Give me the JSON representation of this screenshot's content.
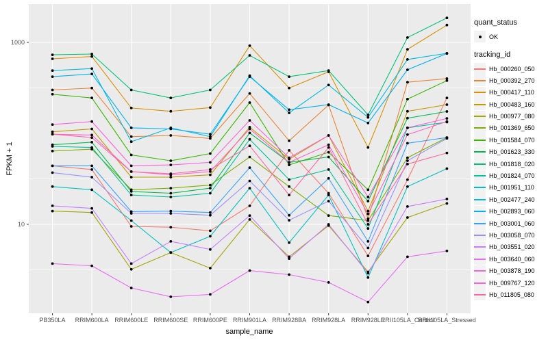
{
  "chart_data": {
    "type": "line",
    "title": "",
    "xlabel": "sample_name",
    "ylabel": "FPKM + 1",
    "y_scale": "log10",
    "y_axis_ticks": [
      10,
      1000
    ],
    "y_minor_gridlines": [
      3.16,
      31.6,
      316
    ],
    "ylim": [
      1.05,
      2600
    ],
    "grid": "on",
    "legend_position": "right",
    "panel_background": "#EBEBEB",
    "gridline_color": "#FFFFFF",
    "point_color": "#000000",
    "x_categories": [
      "PB350LA",
      "RRIM600LA",
      "RRIM600LE",
      "RRIM600SE",
      "RRIM600PE",
      "RRIM901LA",
      "RRIM928BA",
      "RRIM928LA",
      "RRIM928LE",
      "RRII105LA_Control",
      "RRII105LA_Stressed"
    ],
    "series": [
      {
        "tracking_id": "Hb_000260_050",
        "quant_status": "OK",
        "color": "#F8766D",
        "values": [
          44,
          40,
          9.5,
          9.3,
          8.5,
          16,
          65,
          22,
          4.5,
          31,
          245
        ]
      },
      {
        "tracking_id": "Hb_000392_270",
        "quant_status": "OK",
        "color": "#EA8331",
        "values": [
          300,
          315,
          92,
          95,
          88,
          275,
          83,
          205,
          11.5,
          365,
          400
        ]
      },
      {
        "tracking_id": "Hb_000417_110",
        "quant_status": "OK",
        "color": "#D89000",
        "values": [
          660,
          700,
          190,
          175,
          192,
          920,
          315,
          475,
          70,
          840,
          1550
        ]
      },
      {
        "tracking_id": "Hb_000483_160",
        "quant_status": "OK",
        "color": "#C09B00",
        "values": [
          104,
          112,
          33,
          33,
          35,
          117,
          52,
          95,
          14,
          175,
          207
        ]
      },
      {
        "tracking_id": "Hb_000977_080",
        "quant_status": "OK",
        "color": "#A3A500",
        "values": [
          14,
          13.5,
          3.2,
          4.9,
          3.3,
          11.3,
          4.4,
          9.7,
          3.0,
          11.9,
          17
        ]
      },
      {
        "tracking_id": "Hb_001369_650",
        "quant_status": "OK",
        "color": "#7CAE00",
        "values": [
          64,
          67,
          24,
          25,
          27,
          55,
          26,
          12.5,
          11,
          54,
          90
        ]
      },
      {
        "tracking_id": "Hb_001584_070",
        "quant_status": "OK",
        "color": "#39B600",
        "values": [
          269,
          245,
          58,
          50,
          60,
          218,
          45,
          62,
          24,
          238,
          380
        ]
      },
      {
        "tracking_id": "Hb_001623_330",
        "quant_status": "OK",
        "color": "#00BB4E",
        "values": [
          75,
          80,
          23,
          22,
          25,
          101,
          48,
          55,
          18,
          147,
          174
        ]
      },
      {
        "tracking_id": "Hb_001818_020",
        "quant_status": "OK",
        "color": "#00C079",
        "values": [
          731,
          745,
          300,
          245,
          300,
          720,
          420,
          490,
          160,
          1130,
          1860
        ]
      },
      {
        "tracking_id": "Hb_001824_070",
        "quant_status": "OK",
        "color": "#00C19C",
        "values": [
          72,
          70,
          21,
          20,
          22,
          86,
          31,
          40,
          9,
          115,
          133
        ]
      },
      {
        "tracking_id": "Hb_001951_110",
        "quant_status": "OK",
        "color": "#00BFC4",
        "values": [
          26,
          24,
          11,
          4.9,
          7.4,
          25,
          6.3,
          21,
          2.6,
          26,
          41
        ]
      },
      {
        "tracking_id": "Hb_002477_240",
        "quant_status": "OK",
        "color": "#00BAE0",
        "values": [
          490,
          515,
          81,
          115,
          92,
          430,
          168,
          340,
          150,
          650,
          760
        ]
      },
      {
        "tracking_id": "Hb_002893_060",
        "quant_status": "OK",
        "color": "#00B0F6",
        "values": [
          420,
          450,
          115,
          112,
          98,
          420,
          182,
          207,
          130,
          500,
          755
        ]
      },
      {
        "tracking_id": "Hb_003001_060",
        "quant_status": "OK",
        "color": "#35A2FF",
        "values": [
          44,
          44,
          13.8,
          14,
          13.5,
          42,
          12.6,
          32,
          6.5,
          78,
          90
        ]
      },
      {
        "tracking_id": "Hb_003058_070",
        "quant_status": "OK",
        "color": "#9590FF",
        "values": [
          37,
          33,
          13.2,
          13.2,
          12.6,
          30,
          11.1,
          18,
          5.5,
          50,
          88
        ]
      },
      {
        "tracking_id": "Hb_003551_020",
        "quant_status": "OK",
        "color": "#C77CFF",
        "values": [
          16,
          15,
          3.7,
          6.5,
          5.3,
          12.5,
          4.2,
          10,
          2.9,
          15.7,
          19
        ]
      },
      {
        "tracking_id": "Hb_003640_060",
        "quant_status": "OK",
        "color": "#E76BF3",
        "values": [
          3.7,
          3.5,
          2.0,
          1.6,
          1.7,
          3.1,
          2.8,
          2.3,
          1.4,
          4.4,
          5.1
        ]
      },
      {
        "tracking_id": "Hb_003878_190",
        "quant_status": "OK",
        "color": "#FA62DB",
        "values": [
          125,
          135,
          44,
          45,
          48,
          139,
          54,
          95,
          20,
          115,
          146
        ]
      },
      {
        "tracking_id": "Hb_009767_120",
        "quant_status": "OK",
        "color": "#FF61CC",
        "values": [
          98,
          96,
          38,
          35,
          38,
          112,
          48,
          75,
          13,
          97,
          135
        ]
      },
      {
        "tracking_id": "Hb_011805_080",
        "quant_status": "OK",
        "color": "#FF67A4",
        "values": [
          98,
          90,
          38,
          36,
          40,
          73,
          21,
          70,
          10,
          46,
          61
        ]
      }
    ]
  },
  "legend": {
    "quant_status_title": "quant_status",
    "quant_status_items": [
      {
        "label": "OK",
        "marker": "black-point"
      }
    ],
    "tracking_id_title": "tracking_id"
  }
}
